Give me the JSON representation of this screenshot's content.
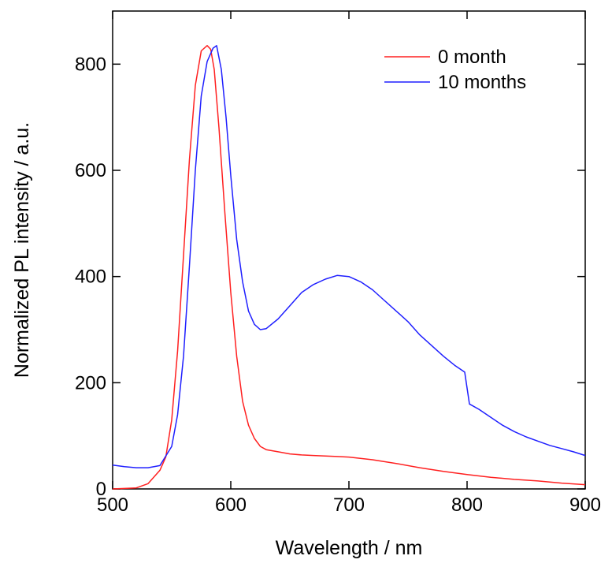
{
  "chart_data": {
    "type": "line",
    "xlabel": "Wavelength / nm",
    "ylabel": "Normalized PL intensity / a.u.",
    "xlim": [
      500,
      900
    ],
    "ylim": [
      0,
      900
    ],
    "xticks": [
      500,
      600,
      700,
      800,
      900
    ],
    "yticks": [
      0,
      200,
      400,
      600,
      800
    ],
    "grid": false,
    "legend_position": "top-right",
    "series": [
      {
        "name": "0 month",
        "color": "#ff2020",
        "x": [
          500,
          520,
          530,
          540,
          545,
          550,
          555,
          560,
          565,
          570,
          575,
          580,
          583,
          586,
          590,
          595,
          600,
          605,
          610,
          615,
          620,
          625,
          630,
          640,
          650,
          660,
          670,
          680,
          690,
          700,
          720,
          740,
          760,
          780,
          800,
          820,
          840,
          860,
          880,
          900
        ],
        "y": [
          0,
          2,
          10,
          35,
          60,
          130,
          260,
          440,
          620,
          760,
          825,
          835,
          828,
          790,
          680,
          520,
          370,
          250,
          165,
          120,
          95,
          80,
          74,
          70,
          66,
          64,
          63,
          62,
          61,
          60,
          55,
          48,
          40,
          33,
          27,
          22,
          18,
          15,
          11,
          8
        ]
      },
      {
        "name": "10 months",
        "color": "#1f1fff",
        "x": [
          500,
          510,
          520,
          530,
          540,
          550,
          555,
          560,
          565,
          570,
          575,
          580,
          585,
          588,
          592,
          596,
          600,
          605,
          610,
          615,
          620,
          625,
          630,
          640,
          650,
          660,
          670,
          680,
          690,
          700,
          710,
          720,
          730,
          740,
          750,
          760,
          770,
          780,
          790,
          798,
          802,
          810,
          820,
          830,
          840,
          850,
          860,
          870,
          880,
          890,
          900
        ],
        "y": [
          45,
          42,
          40,
          40,
          44,
          80,
          140,
          250,
          420,
          600,
          740,
          805,
          830,
          835,
          790,
          700,
          590,
          470,
          390,
          335,
          310,
          300,
          302,
          320,
          345,
          370,
          385,
          395,
          402,
          400,
          390,
          375,
          355,
          335,
          315,
          290,
          270,
          250,
          232,
          220,
          160,
          150,
          135,
          120,
          108,
          98,
          90,
          82,
          76,
          70,
          63
        ]
      }
    ]
  }
}
